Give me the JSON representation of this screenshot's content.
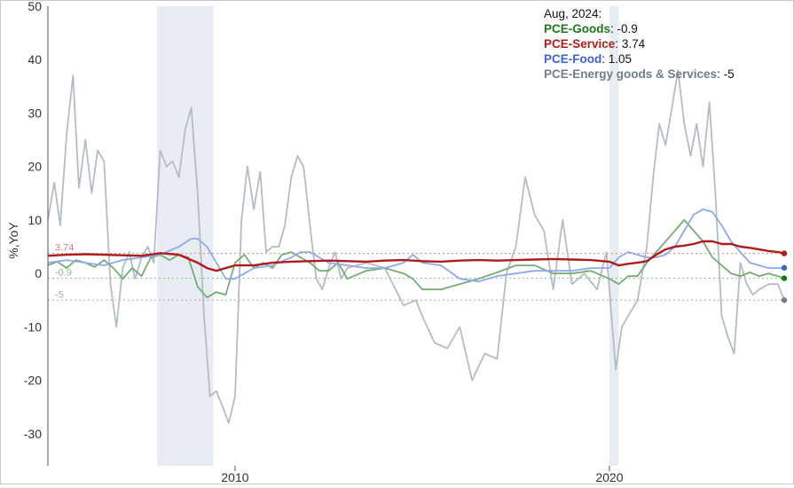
{
  "chart_data": {
    "type": "line",
    "ylabel": "%,YoY",
    "ylim": [
      -36,
      50
    ],
    "xlim": [
      2005.0,
      2024.67
    ],
    "y_ticks": [
      50,
      40,
      30,
      20,
      10,
      0,
      -10,
      -20,
      -30
    ],
    "x_ticks": [
      {
        "value": 2010,
        "label": "2010"
      },
      {
        "value": 2020,
        "label": "2020"
      }
    ],
    "recessions": [
      [
        2007.92,
        2009.42
      ],
      [
        2020.0,
        2020.25
      ]
    ],
    "legend": {
      "header": "Aug, 2024:",
      "entries": [
        {
          "name": "PCE-Goods",
          "value": "-0.9",
          "color": "#1a7a1a"
        },
        {
          "name": "PCE-Service",
          "value": "3.74",
          "color": "#b01c1c"
        },
        {
          "name": "PCE-Food",
          "value": "1.05",
          "color": "#3a63d8"
        },
        {
          "name": "PCE-Energy goods & Services",
          "value": "-5",
          "color": "#6f7d8c"
        }
      ]
    },
    "reference_lines": [
      {
        "label": "3.74",
        "value": 3.74,
        "color": "#d98080"
      },
      {
        "label": "-0.9",
        "value": -0.9,
        "color": "#88b888"
      },
      {
        "label": "-5",
        "value": -5,
        "color": "#a8a8a8"
      }
    ],
    "series": [
      {
        "name": "PCE-Energy goods & Services",
        "color": "#b3bcc5",
        "width": 1.8,
        "x": [
          2005.0,
          2005.17,
          2005.33,
          2005.5,
          2005.67,
          2005.83,
          2006.0,
          2006.17,
          2006.33,
          2006.5,
          2006.67,
          2006.83,
          2007.0,
          2007.17,
          2007.33,
          2007.5,
          2007.67,
          2007.83,
          2008.0,
          2008.17,
          2008.33,
          2008.5,
          2008.67,
          2008.83,
          2009.0,
          2009.17,
          2009.33,
          2009.5,
          2009.67,
          2009.83,
          2010.0,
          2010.17,
          2010.33,
          2010.5,
          2010.67,
          2010.83,
          2011.0,
          2011.17,
          2011.33,
          2011.5,
          2011.67,
          2011.83,
          2012.0,
          2012.17,
          2012.33,
          2012.5,
          2012.67,
          2012.83,
          2013.0,
          2013.5,
          2014.0,
          2014.5,
          2014.83,
          2015.0,
          2015.33,
          2015.67,
          2016.0,
          2016.33,
          2016.67,
          2017.0,
          2017.25,
          2017.5,
          2017.75,
          2018.0,
          2018.25,
          2018.5,
          2018.75,
          2019.0,
          2019.33,
          2019.67,
          2019.92,
          2020.17,
          2020.33,
          2020.5,
          2020.75,
          2021.0,
          2021.17,
          2021.33,
          2021.5,
          2021.67,
          2021.83,
          2022.0,
          2022.17,
          2022.33,
          2022.5,
          2022.67,
          2022.83,
          2023.0,
          2023.17,
          2023.33,
          2023.5,
          2023.67,
          2023.83,
          2024.0,
          2024.25,
          2024.5,
          2024.67
        ],
        "y": [
          10,
          17,
          9,
          26,
          37,
          16,
          25,
          15,
          23,
          21,
          -2,
          -10,
          1,
          4,
          -1,
          3,
          5,
          2,
          23,
          20,
          21,
          18,
          27,
          31,
          15,
          -8,
          -23,
          -22,
          -25,
          -28,
          -23,
          10,
          20,
          12,
          19,
          4,
          5,
          5,
          9,
          18,
          22,
          20,
          9,
          -1,
          -3,
          1,
          4,
          -1,
          1,
          2,
          1,
          -6,
          -5,
          -8,
          -13,
          -14,
          -10,
          -20,
          -15,
          -16,
          0,
          5,
          18,
          11,
          8,
          -3,
          10,
          -2,
          0,
          -3,
          4,
          -18,
          -10,
          -8,
          -5,
          5,
          18,
          28,
          24,
          31,
          38,
          28,
          22,
          28,
          20,
          32,
          15,
          -8,
          -12,
          -15,
          2,
          -2,
          -4,
          -3,
          -2,
          -2,
          -5
        ]
      },
      {
        "name": "PCE-Goods",
        "color": "#74ad74",
        "width": 1.8,
        "x": [
          2005.0,
          2005.25,
          2005.5,
          2005.75,
          2006.0,
          2006.25,
          2006.5,
          2006.75,
          2007.0,
          2007.25,
          2007.5,
          2007.75,
          2008.0,
          2008.25,
          2008.5,
          2008.75,
          2009.0,
          2009.25,
          2009.5,
          2009.75,
          2010.0,
          2010.25,
          2010.5,
          2010.75,
          2011.0,
          2011.25,
          2011.5,
          2011.75,
          2012.0,
          2012.25,
          2012.5,
          2012.75,
          2013.0,
          2013.5,
          2014.0,
          2014.5,
          2014.75,
          2015.0,
          2015.5,
          2016.0,
          2016.5,
          2017.0,
          2017.5,
          2018.0,
          2018.5,
          2019.0,
          2019.5,
          2020.0,
          2020.25,
          2020.5,
          2020.75,
          2021.0,
          2021.25,
          2021.5,
          2021.75,
          2022.0,
          2022.25,
          2022.5,
          2022.75,
          2023.0,
          2023.25,
          2023.5,
          2023.75,
          2024.0,
          2024.25,
          2024.5,
          2024.67
        ],
        "y": [
          1.5,
          2.2,
          1,
          2.5,
          2,
          1.2,
          2.5,
          1,
          -1,
          1,
          -0.5,
          3,
          3.5,
          2.5,
          3.5,
          3,
          -2.5,
          -4.5,
          -3.5,
          -4,
          2,
          3.5,
          1,
          2,
          1,
          3.5,
          4,
          3,
          2,
          0.5,
          0.5,
          2,
          -1,
          0.5,
          1,
          0,
          -1,
          -3,
          -3,
          -2,
          -1,
          0.2,
          1.5,
          1.5,
          0,
          0,
          0.5,
          -1,
          -2,
          -0.5,
          -0.5,
          2,
          4,
          6,
          8,
          10,
          8,
          6,
          3,
          1.5,
          0,
          -0.5,
          0.2,
          -0.5,
          0,
          -0.5,
          -0.9
        ]
      },
      {
        "name": "PCE-Food",
        "color": "#8fa9ec",
        "width": 1.8,
        "x": [
          2005.0,
          2005.5,
          2006.0,
          2006.5,
          2007.0,
          2007.5,
          2008.0,
          2008.5,
          2008.83,
          2009.0,
          2009.25,
          2009.5,
          2009.75,
          2010.0,
          2010.25,
          2010.5,
          2011.0,
          2011.5,
          2011.75,
          2012.0,
          2012.5,
          2013.0,
          2013.5,
          2014.0,
          2014.5,
          2014.75,
          2015.0,
          2015.5,
          2016.0,
          2016.5,
          2017.0,
          2017.5,
          2018.0,
          2018.5,
          2019.0,
          2019.5,
          2020.0,
          2020.25,
          2020.5,
          2020.75,
          2021.0,
          2021.25,
          2021.5,
          2021.75,
          2022.0,
          2022.25,
          2022.5,
          2022.75,
          2023.0,
          2023.25,
          2023.5,
          2023.75,
          2024.0,
          2024.25,
          2024.5,
          2024.67
        ],
        "y": [
          2,
          2.5,
          2,
          1.5,
          2.5,
          3,
          3.5,
          5,
          6.5,
          6.5,
          5,
          2,
          -1,
          -1,
          0,
          1,
          1.5,
          3,
          4,
          4,
          2,
          1.5,
          1,
          1,
          2,
          3.5,
          2,
          1.5,
          -1,
          -1.5,
          -0.5,
          0,
          0.5,
          0.5,
          0.5,
          1,
          1,
          3,
          4,
          3.5,
          3,
          3,
          3.5,
          5,
          8,
          11,
          12,
          11.5,
          9,
          6,
          4,
          2,
          1.5,
          1,
          1,
          1.05
        ]
      },
      {
        "name": "PCE-Service",
        "color": "#b01c1c",
        "width": 2.4,
        "x": [
          2005.0,
          2005.5,
          2006.0,
          2006.5,
          2007.0,
          2007.5,
          2008.0,
          2008.5,
          2009.0,
          2009.25,
          2009.5,
          2009.75,
          2010.0,
          2010.5,
          2011.0,
          2011.5,
          2012.0,
          2012.5,
          2013.0,
          2013.5,
          2014.0,
          2014.5,
          2015.0,
          2015.5,
          2016.0,
          2016.5,
          2017.0,
          2017.5,
          2018.0,
          2018.5,
          2019.0,
          2019.5,
          2020.0,
          2020.25,
          2020.5,
          2020.75,
          2021.0,
          2021.25,
          2021.5,
          2021.75,
          2022.0,
          2022.25,
          2022.5,
          2022.75,
          2023.0,
          2023.25,
          2023.5,
          2023.75,
          2024.0,
          2024.25,
          2024.5,
          2024.67
        ],
        "y": [
          3.3,
          3.5,
          3.6,
          3.5,
          3.4,
          3.3,
          3.8,
          3.5,
          2,
          1,
          0.5,
          1,
          1.5,
          1.5,
          2,
          2.2,
          2.3,
          2.4,
          2.3,
          2.2,
          2.4,
          2.5,
          2.3,
          2.2,
          2.4,
          2.5,
          2.4,
          2.5,
          2.6,
          2.7,
          2.6,
          2.5,
          2.2,
          1.5,
          1.8,
          2,
          2.3,
          3.5,
          4.5,
          5,
          5.2,
          5.5,
          6,
          6,
          5.5,
          5.5,
          5,
          4.8,
          4.5,
          4.2,
          4,
          3.74
        ]
      }
    ]
  }
}
